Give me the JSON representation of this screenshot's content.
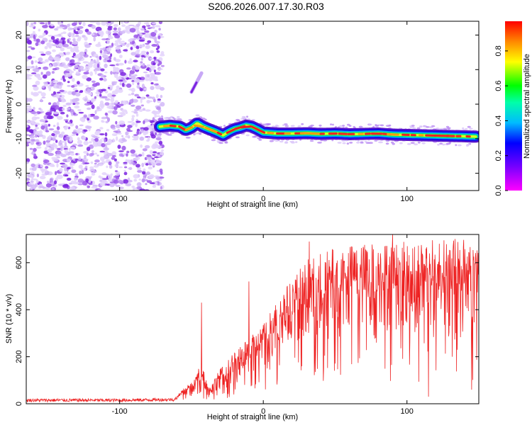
{
  "title": "S206.2026.007.17.30.R03",
  "colors": {
    "snr_line": "#ee2222",
    "scatter_purple": "#7a22e0",
    "ridge_core": "#e83030",
    "axis": "#000000"
  },
  "chart_data": [
    {
      "type": "heatmap",
      "name": "spectrogram",
      "title": "",
      "xlabel": "Height of straight line (km)",
      "ylabel": "Frequency (Hz)",
      "xlim": [
        -165,
        150
      ],
      "ylim": [
        -25,
        24
      ],
      "xticks": [
        -100,
        0,
        100
      ],
      "yticks": [
        20,
        10,
        0,
        -10,
        -20
      ],
      "noise_region_x": [
        -165,
        -70
      ],
      "ridge": {
        "x": [
          -72,
          -65,
          -58,
          -54,
          -50,
          -46,
          -42,
          -38,
          -33,
          -28,
          -24,
          -20,
          -16,
          -12,
          -8,
          -4,
          0,
          10,
          20,
          30,
          40,
          50,
          60,
          70,
          80,
          90,
          100,
          110,
          120,
          130,
          140,
          148
        ],
        "y": [
          -6.5,
          -6.2,
          -6.5,
          -7.5,
          -6.8,
          -5.5,
          -6.5,
          -7.2,
          -8.0,
          -9.0,
          -8.0,
          -7.2,
          -6.8,
          -6.2,
          -6.5,
          -7.3,
          -8.2,
          -8.5,
          -8.5,
          -8.4,
          -8.6,
          -8.5,
          -8.7,
          -8.6,
          -8.5,
          -8.8,
          -8.9,
          -9.0,
          -9.1,
          -9.2,
          -9.3,
          -9.4
        ]
      },
      "isolated_feature": {
        "x": [
          -50,
          -43
        ],
        "y": [
          3.5,
          9
        ]
      },
      "colorbar": {
        "label": "Normalized spectral amplitude",
        "ticks": [
          0.0,
          0.2,
          0.4,
          0.6,
          0.8
        ],
        "tick_labels": [
          "0.0",
          "0.2",
          "0.4",
          "0.6",
          "0.8"
        ],
        "range": [
          0,
          0.97
        ]
      }
    },
    {
      "type": "line",
      "name": "snr",
      "title": "",
      "xlabel": "Height of straight line (km)",
      "ylabel": "SNR (10 * v/v)",
      "xlim": [
        -165,
        150
      ],
      "ylim": [
        0,
        720
      ],
      "xticks": [
        -100,
        0,
        100
      ],
      "yticks": [
        0,
        200,
        400,
        600
      ],
      "envelope": {
        "x": [
          -165,
          -100,
          -62,
          -55,
          -48,
          -43,
          -38,
          -30,
          -20,
          -10,
          0,
          10,
          20,
          30,
          40,
          50,
          60,
          80,
          100,
          120,
          150
        ],
        "y": [
          15,
          15,
          18,
          60,
          90,
          160,
          60,
          130,
          190,
          240,
          300,
          390,
          470,
          530,
          560,
          580,
          590,
          600,
          600,
          610,
          610
        ]
      },
      "spikes": [
        {
          "x": -43,
          "y": 430
        },
        {
          "x": -10,
          "y": 520
        },
        {
          "x": 32,
          "y": 690
        },
        {
          "x": 90,
          "y": 720
        },
        {
          "x": 135,
          "y": 700
        }
      ],
      "dropouts": [
        {
          "x": 115,
          "y": 30
        },
        {
          "x": 145,
          "y": 60
        },
        {
          "x": 135,
          "y": 230
        }
      ]
    }
  ]
}
